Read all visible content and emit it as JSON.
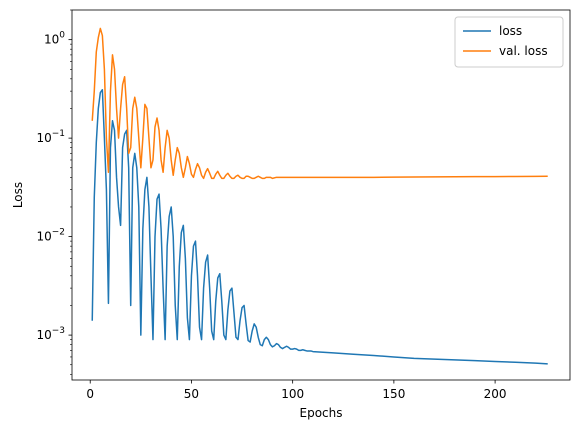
{
  "chart_data": {
    "type": "line",
    "title": "",
    "xlabel": "Epochs",
    "ylabel": "Loss",
    "yscale": "log",
    "xlim": [
      -9,
      237
    ],
    "ylim": [
      0.00035,
      2.0
    ],
    "xticks": [
      0,
      50,
      100,
      150,
      200
    ],
    "xtick_labels": [
      "0",
      "50",
      "100",
      "150",
      "200"
    ],
    "yticks": [
      0.001,
      0.01,
      0.1,
      1
    ],
    "ytick_base": "10",
    "ytick_exponents": [
      "−3",
      "−2",
      "−1",
      "0"
    ],
    "grid": false,
    "legend_position": "top-right",
    "series": [
      {
        "name": "loss",
        "color": "#1f77b4",
        "points": [
          [
            1,
            0.0014
          ],
          [
            2,
            0.025
          ],
          [
            3,
            0.09
          ],
          [
            4,
            0.2
          ],
          [
            5,
            0.29
          ],
          [
            6,
            0.31
          ],
          [
            7,
            0.1
          ],
          [
            8,
            0.03
          ],
          [
            9,
            0.0021
          ],
          [
            10,
            0.08
          ],
          [
            11,
            0.15
          ],
          [
            12,
            0.12
          ],
          [
            13,
            0.04
          ],
          [
            14,
            0.02
          ],
          [
            15,
            0.013
          ],
          [
            16,
            0.08
          ],
          [
            17,
            0.11
          ],
          [
            18,
            0.12
          ],
          [
            19,
            0.05
          ],
          [
            20,
            0.002
          ],
          [
            21,
            0.05
          ],
          [
            22,
            0.07
          ],
          [
            23,
            0.05
          ],
          [
            24,
            0.02
          ],
          [
            25,
            0.001
          ],
          [
            26,
            0.012
          ],
          [
            27,
            0.03
          ],
          [
            28,
            0.04
          ],
          [
            29,
            0.02
          ],
          [
            30,
            0.004
          ],
          [
            31,
            0.0009
          ],
          [
            32,
            0.01
          ],
          [
            33,
            0.024
          ],
          [
            34,
            0.027
          ],
          [
            35,
            0.012
          ],
          [
            36,
            0.003
          ],
          [
            37,
            0.0009
          ],
          [
            38,
            0.008
          ],
          [
            39,
            0.016
          ],
          [
            40,
            0.02
          ],
          [
            41,
            0.01
          ],
          [
            42,
            0.002
          ],
          [
            43,
            0.0009
          ],
          [
            44,
            0.005
          ],
          [
            45,
            0.011
          ],
          [
            46,
            0.013
          ],
          [
            47,
            0.006
          ],
          [
            48,
            0.0015
          ],
          [
            49,
            0.0009
          ],
          [
            50,
            0.004
          ],
          [
            51,
            0.008
          ],
          [
            52,
            0.009
          ],
          [
            53,
            0.004
          ],
          [
            54,
            0.0012
          ],
          [
            55,
            0.0009
          ],
          [
            56,
            0.003
          ],
          [
            57,
            0.0055
          ],
          [
            58,
            0.0065
          ],
          [
            59,
            0.003
          ],
          [
            60,
            0.0011
          ],
          [
            61,
            0.0009
          ],
          [
            62,
            0.0022
          ],
          [
            63,
            0.0038
          ],
          [
            64,
            0.0042
          ],
          [
            65,
            0.0022
          ],
          [
            66,
            0.001
          ],
          [
            67,
            0.0009
          ],
          [
            68,
            0.0018
          ],
          [
            69,
            0.0028
          ],
          [
            70,
            0.003
          ],
          [
            71,
            0.0017
          ],
          [
            72,
            0.00095
          ],
          [
            73,
            0.0009
          ],
          [
            74,
            0.0014
          ],
          [
            75,
            0.0019
          ],
          [
            76,
            0.002
          ],
          [
            77,
            0.0013
          ],
          [
            78,
            0.00088
          ],
          [
            79,
            0.00085
          ],
          [
            80,
            0.0011
          ],
          [
            81,
            0.0013
          ],
          [
            82,
            0.0012
          ],
          [
            83,
            0.00095
          ],
          [
            84,
            0.0008
          ],
          [
            85,
            0.00078
          ],
          [
            86,
            0.0009
          ],
          [
            87,
            0.00095
          ],
          [
            88,
            0.0009
          ],
          [
            89,
            0.0008
          ],
          [
            90,
            0.00076
          ],
          [
            91,
            0.00078
          ],
          [
            92,
            0.00082
          ],
          [
            93,
            0.0008
          ],
          [
            94,
            0.00075
          ],
          [
            95,
            0.00073
          ],
          [
            96,
            0.00075
          ],
          [
            97,
            0.00077
          ],
          [
            98,
            0.00075
          ],
          [
            99,
            0.00072
          ],
          [
            100,
            0.00072
          ],
          [
            101,
            0.00073
          ],
          [
            102,
            0.00072
          ],
          [
            103,
            0.0007
          ],
          [
            104,
            0.0007
          ],
          [
            105,
            0.00071
          ],
          [
            106,
            0.0007
          ],
          [
            107,
            0.00069
          ],
          [
            108,
            0.00069
          ],
          [
            109,
            0.00069
          ],
          [
            110,
            0.00068
          ],
          [
            115,
            0.00067
          ],
          [
            120,
            0.00066
          ],
          [
            130,
            0.00064
          ],
          [
            140,
            0.00062
          ],
          [
            150,
            0.0006
          ],
          [
            160,
            0.00058
          ],
          [
            170,
            0.00057
          ],
          [
            180,
            0.00056
          ],
          [
            190,
            0.00055
          ],
          [
            200,
            0.00054
          ],
          [
            210,
            0.00053
          ],
          [
            220,
            0.00052
          ],
          [
            226,
            0.00051
          ]
        ]
      },
      {
        "name": "val. loss",
        "color": "#ff7f0e",
        "points": [
          [
            1,
            0.15
          ],
          [
            2,
            0.3
          ],
          [
            3,
            0.75
          ],
          [
            4,
            1.05
          ],
          [
            5,
            1.3
          ],
          [
            6,
            1.1
          ],
          [
            7,
            0.5
          ],
          [
            8,
            0.1
          ],
          [
            9,
            0.045
          ],
          [
            10,
            0.3
          ],
          [
            11,
            0.7
          ],
          [
            12,
            0.5
          ],
          [
            13,
            0.2
          ],
          [
            14,
            0.1
          ],
          [
            15,
            0.2
          ],
          [
            16,
            0.35
          ],
          [
            17,
            0.42
          ],
          [
            18,
            0.2
          ],
          [
            19,
            0.07
          ],
          [
            20,
            0.08
          ],
          [
            21,
            0.2
          ],
          [
            22,
            0.26
          ],
          [
            23,
            0.2
          ],
          [
            24,
            0.1
          ],
          [
            25,
            0.05
          ],
          [
            26,
            0.1
          ],
          [
            27,
            0.22
          ],
          [
            28,
            0.2
          ],
          [
            29,
            0.1
          ],
          [
            30,
            0.05
          ],
          [
            31,
            0.06
          ],
          [
            32,
            0.13
          ],
          [
            33,
            0.16
          ],
          [
            34,
            0.12
          ],
          [
            35,
            0.06
          ],
          [
            36,
            0.045
          ],
          [
            37,
            0.08
          ],
          [
            38,
            0.12
          ],
          [
            39,
            0.1
          ],
          [
            40,
            0.06
          ],
          [
            41,
            0.042
          ],
          [
            42,
            0.06
          ],
          [
            43,
            0.08
          ],
          [
            44,
            0.07
          ],
          [
            45,
            0.05
          ],
          [
            46,
            0.04
          ],
          [
            47,
            0.05
          ],
          [
            48,
            0.065
          ],
          [
            49,
            0.055
          ],
          [
            50,
            0.043
          ],
          [
            51,
            0.04
          ],
          [
            52,
            0.048
          ],
          [
            53,
            0.055
          ],
          [
            54,
            0.05
          ],
          [
            55,
            0.042
          ],
          [
            56,
            0.039
          ],
          [
            57,
            0.045
          ],
          [
            58,
            0.049
          ],
          [
            59,
            0.044
          ],
          [
            60,
            0.039
          ],
          [
            61,
            0.039
          ],
          [
            62,
            0.043
          ],
          [
            63,
            0.046
          ],
          [
            64,
            0.042
          ],
          [
            65,
            0.039
          ],
          [
            66,
            0.039
          ],
          [
            67,
            0.042
          ],
          [
            68,
            0.044
          ],
          [
            69,
            0.041
          ],
          [
            70,
            0.039
          ],
          [
            71,
            0.039
          ],
          [
            72,
            0.041
          ],
          [
            73,
            0.042
          ],
          [
            74,
            0.04
          ],
          [
            75,
            0.039
          ],
          [
            76,
            0.039
          ],
          [
            77,
            0.041
          ],
          [
            78,
            0.041
          ],
          [
            79,
            0.04
          ],
          [
            80,
            0.039
          ],
          [
            81,
            0.039
          ],
          [
            82,
            0.04
          ],
          [
            83,
            0.041
          ],
          [
            84,
            0.04
          ],
          [
            85,
            0.039
          ],
          [
            86,
            0.039
          ],
          [
            87,
            0.04
          ],
          [
            88,
            0.04
          ],
          [
            89,
            0.04
          ],
          [
            90,
            0.039
          ],
          [
            92,
            0.04
          ],
          [
            94,
            0.04
          ],
          [
            96,
            0.04
          ],
          [
            98,
            0.04
          ],
          [
            100,
            0.04
          ],
          [
            110,
            0.04
          ],
          [
            120,
            0.04
          ],
          [
            130,
            0.04
          ],
          [
            140,
            0.04
          ],
          [
            150,
            0.0402
          ],
          [
            160,
            0.0403
          ],
          [
            170,
            0.0404
          ],
          [
            180,
            0.0405
          ],
          [
            190,
            0.0406
          ],
          [
            200,
            0.0407
          ],
          [
            210,
            0.0408
          ],
          [
            220,
            0.0409
          ],
          [
            226,
            0.041
          ]
        ]
      }
    ]
  }
}
